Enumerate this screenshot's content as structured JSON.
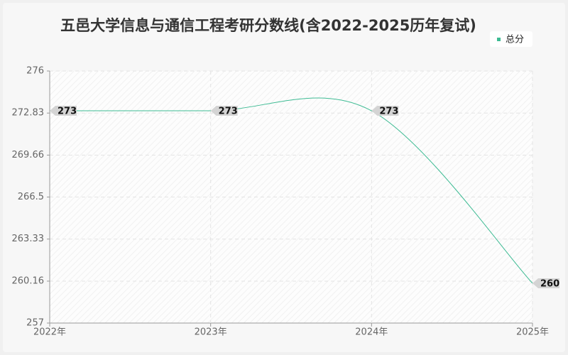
{
  "chart_data": {
    "type": "line",
    "title": "五邑大学信息与通信工程考研分数线(含2022-2025历年复试)",
    "categories": [
      "2022年",
      "2023年",
      "2024年",
      "2025年"
    ],
    "series": [
      {
        "name": "总分",
        "color": "#3dbb93",
        "values": [
          273,
          273,
          273,
          260
        ]
      }
    ],
    "ylim": [
      257,
      276
    ],
    "yticks": [
      257,
      260.16,
      263.33,
      266.5,
      269.66,
      272.83,
      276
    ],
    "grid": true,
    "legend": "top-right"
  }
}
